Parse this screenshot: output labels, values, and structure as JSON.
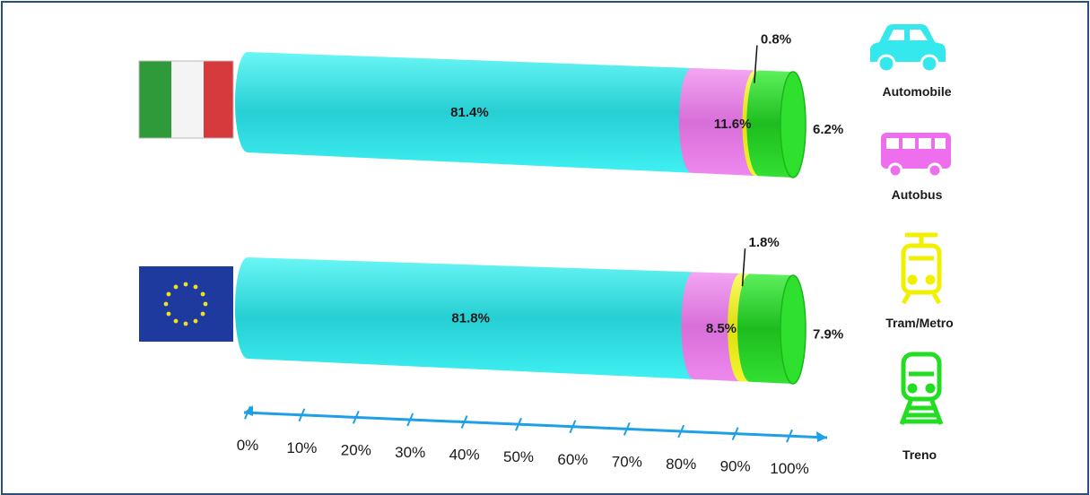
{
  "chart_data": {
    "type": "bar",
    "orientation": "horizontal",
    "stacked": true,
    "categories": [
      "Italia",
      "UE"
    ],
    "series": [
      {
        "name": "Automobile",
        "values": [
          81.4,
          81.8
        ],
        "color": "#33f0f0"
      },
      {
        "name": "Autobus",
        "values": [
          11.6,
          8.5
        ],
        "color": "#ee82ee"
      },
      {
        "name": "Tram/Metro",
        "values": [
          0.8,
          1.8
        ],
        "color": "#f5f51a"
      },
      {
        "name": "Treno",
        "values": [
          6.2,
          7.9
        ],
        "color": "#22dd22"
      }
    ],
    "data_labels": [
      [
        "81.4%",
        "11.6%",
        "0.8%",
        "6.2%"
      ],
      [
        "81.8%",
        "8.5%",
        "1.8%",
        "7.9%"
      ]
    ],
    "x_ticks": [
      "0%",
      "10%",
      "20%",
      "30%",
      "40%",
      "50%",
      "60%",
      "70%",
      "80%",
      "90%",
      "100%"
    ],
    "xlim": [
      0,
      100
    ],
    "axis_color": "#1ea0e6",
    "legend_position": "right",
    "legend_icons": [
      "car-icon",
      "bus-icon",
      "tram-icon",
      "train-icon"
    ],
    "row_icons": [
      "flag-italy-icon",
      "flag-eu-icon"
    ]
  }
}
